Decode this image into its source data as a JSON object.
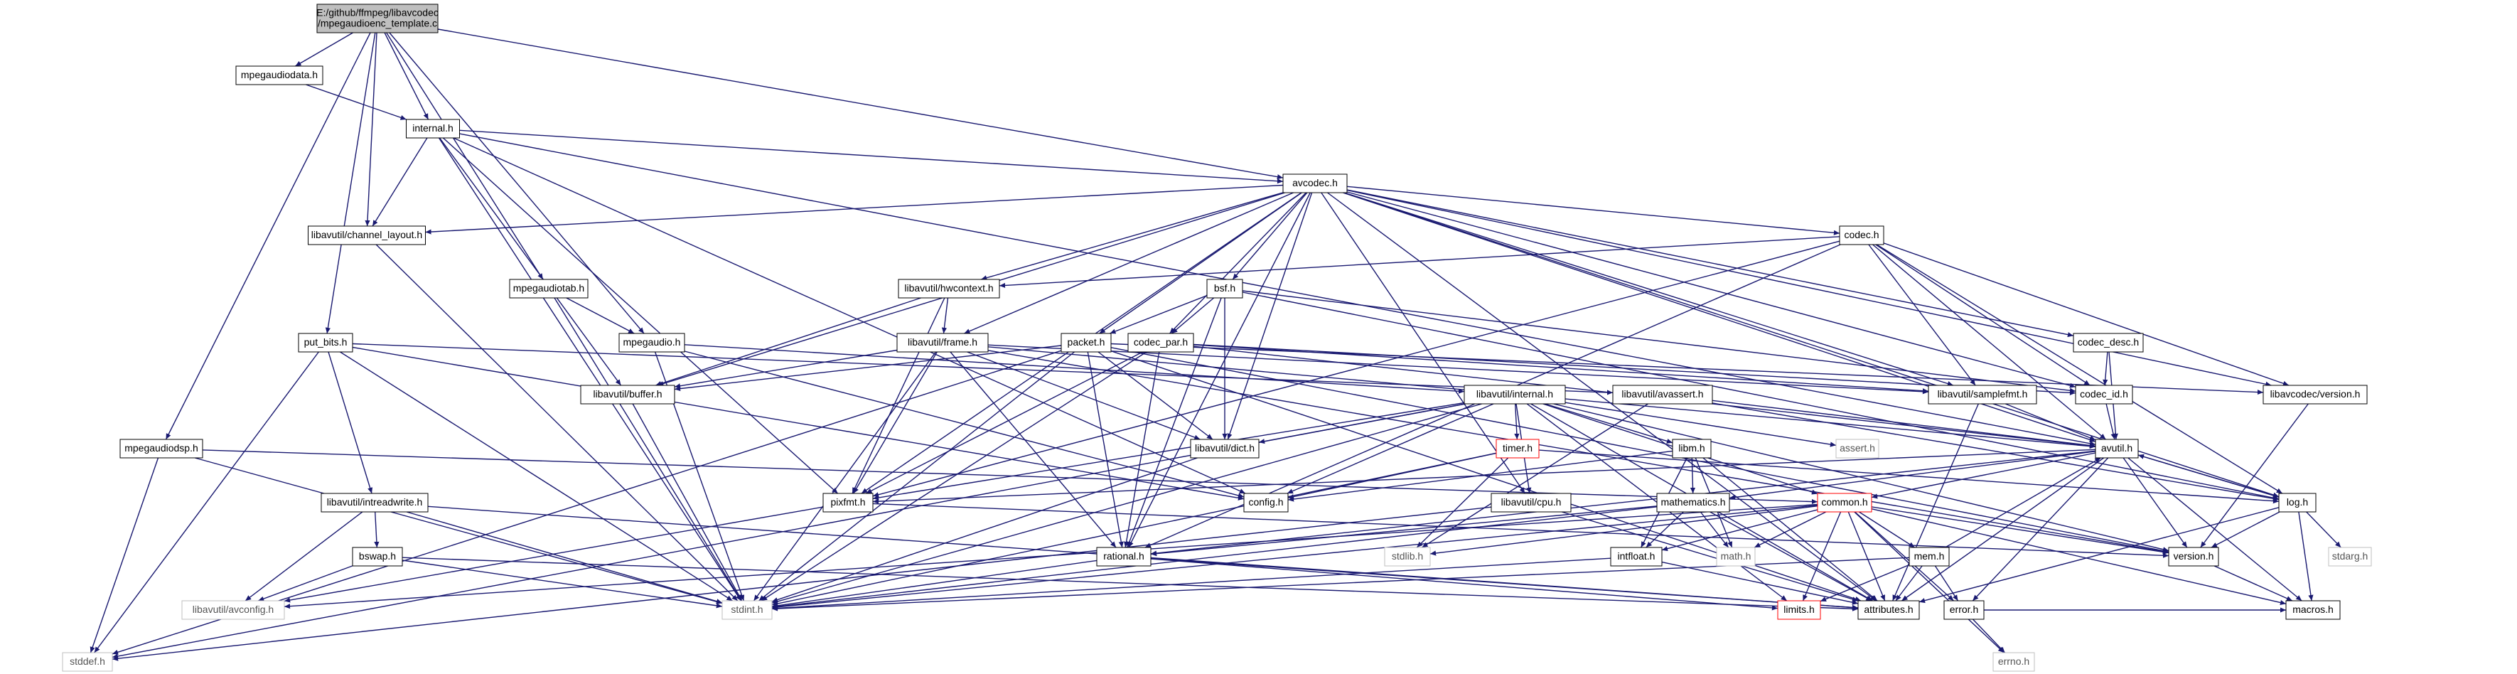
{
  "colors": {
    "edge": "#191970",
    "node_border": "#000000",
    "node_fill": "#ffffff",
    "root_fill": "#bfbfbf",
    "system_border": "#bfbfbf",
    "truncated_border": "#ff0000",
    "text": "#000000",
    "system_text": "#555555"
  },
  "graph": {
    "nodes": [
      {
        "id": "root",
        "label": "E:/github/ffmpeg/libavcodec\n/mpegaudioenc_template.c",
        "kind": "root"
      },
      {
        "id": "mpegaudiodata",
        "label": "mpegaudiodata.h"
      },
      {
        "id": "internal",
        "label": "internal.h"
      },
      {
        "id": "avcodec",
        "label": "avcodec.h"
      },
      {
        "id": "channel_layout",
        "label": "libavutil/channel_layout.h"
      },
      {
        "id": "codec",
        "label": "codec.h"
      },
      {
        "id": "hwcontext",
        "label": "libavutil/hwcontext.h"
      },
      {
        "id": "bsf",
        "label": "bsf.h"
      },
      {
        "id": "mpegaudiotab",
        "label": "mpegaudiotab.h"
      },
      {
        "id": "put_bits",
        "label": "put_bits.h"
      },
      {
        "id": "mpegaudio",
        "label": "mpegaudio.h"
      },
      {
        "id": "frame",
        "label": "libavutil/frame.h"
      },
      {
        "id": "packet",
        "label": "packet.h"
      },
      {
        "id": "codec_par",
        "label": "codec_par.h"
      },
      {
        "id": "codec_desc",
        "label": "codec_desc.h"
      },
      {
        "id": "buffer",
        "label": "libavutil/buffer.h"
      },
      {
        "id": "avutil_internal",
        "label": "libavutil/internal.h"
      },
      {
        "id": "avassert",
        "label": "libavutil/avassert.h"
      },
      {
        "id": "samplefmt",
        "label": "libavutil/samplefmt.h"
      },
      {
        "id": "codec_id",
        "label": "codec_id.h"
      },
      {
        "id": "avcodec_version",
        "label": "libavcodec/version.h"
      },
      {
        "id": "mpegaudiodsp",
        "label": "mpegaudiodsp.h"
      },
      {
        "id": "dict",
        "label": "libavutil/dict.h"
      },
      {
        "id": "timer",
        "label": "timer.h",
        "kind": "truncated"
      },
      {
        "id": "libm",
        "label": "libm.h"
      },
      {
        "id": "assert",
        "label": "assert.h",
        "kind": "system"
      },
      {
        "id": "avutil",
        "label": "avutil.h"
      },
      {
        "id": "intreadwrite",
        "label": "libavutil/intreadwrite.h"
      },
      {
        "id": "pixfmt",
        "label": "pixfmt.h"
      },
      {
        "id": "config",
        "label": "config.h"
      },
      {
        "id": "cpu",
        "label": "libavutil/cpu.h"
      },
      {
        "id": "mathematics",
        "label": "mathematics.h"
      },
      {
        "id": "common",
        "label": "common.h",
        "kind": "truncated"
      },
      {
        "id": "log",
        "label": "log.h"
      },
      {
        "id": "bswap",
        "label": "bswap.h"
      },
      {
        "id": "rational",
        "label": "rational.h"
      },
      {
        "id": "stdlib",
        "label": "stdlib.h",
        "kind": "system"
      },
      {
        "id": "intfloat",
        "label": "intfloat.h"
      },
      {
        "id": "math",
        "label": "math.h",
        "kind": "system"
      },
      {
        "id": "mem",
        "label": "mem.h"
      },
      {
        "id": "version",
        "label": "version.h"
      },
      {
        "id": "stdarg",
        "label": "stdarg.h",
        "kind": "system"
      },
      {
        "id": "avconfig",
        "label": "libavutil/avconfig.h",
        "kind": "system"
      },
      {
        "id": "stdint",
        "label": "stdint.h",
        "kind": "system"
      },
      {
        "id": "limits",
        "label": "limits.h",
        "kind": "truncated"
      },
      {
        "id": "attributes",
        "label": "attributes.h"
      },
      {
        "id": "error",
        "label": "error.h"
      },
      {
        "id": "macros",
        "label": "macros.h"
      },
      {
        "id": "stddef",
        "label": "stddef.h",
        "kind": "system"
      },
      {
        "id": "errno",
        "label": "errno.h",
        "kind": "system"
      }
    ],
    "edges": [
      [
        "root",
        "mpegaudiodata"
      ],
      [
        "root",
        "internal"
      ],
      [
        "root",
        "avcodec"
      ],
      [
        "root",
        "channel_layout"
      ],
      [
        "root",
        "mpegaudiotab"
      ],
      [
        "root",
        "put_bits"
      ],
      [
        "root",
        "mpegaudio"
      ],
      [
        "root",
        "mpegaudiodsp"
      ],
      [
        "mpegaudiodata",
        "internal"
      ],
      [
        "internal",
        "avcodec"
      ],
      [
        "internal",
        "channel_layout"
      ],
      [
        "internal",
        "buffer"
      ],
      [
        "internal",
        "pixfmt"
      ],
      [
        "internal",
        "stdint"
      ],
      [
        "internal",
        "config"
      ],
      [
        "internal",
        "avutil"
      ],
      [
        "avcodec",
        "channel_layout"
      ],
      [
        "avcodec",
        "codec"
      ],
      [
        "avcodec",
        "hwcontext"
      ],
      [
        "avcodec",
        "bsf"
      ],
      [
        "avcodec",
        "frame"
      ],
      [
        "avcodec",
        "packet"
      ],
      [
        "avcodec",
        "codec_par"
      ],
      [
        "avcodec",
        "codec_desc"
      ],
      [
        "avcodec",
        "buffer"
      ],
      [
        "avcodec",
        "samplefmt"
      ],
      [
        "avcodec",
        "codec_id"
      ],
      [
        "avcodec",
        "avcodec_version"
      ],
      [
        "avcodec",
        "dict"
      ],
      [
        "avcodec",
        "cpu"
      ],
      [
        "avcodec",
        "log"
      ],
      [
        "avcodec",
        "pixfmt"
      ],
      [
        "avcodec",
        "rational"
      ],
      [
        "avcodec",
        "avutil"
      ],
      [
        "avcodec",
        "attributes"
      ],
      [
        "channel_layout",
        "stdint"
      ],
      [
        "codec",
        "hwcontext"
      ],
      [
        "codec",
        "samplefmt"
      ],
      [
        "codec",
        "codec_id"
      ],
      [
        "codec",
        "avcodec_version"
      ],
      [
        "codec",
        "avutil"
      ],
      [
        "codec",
        "log"
      ],
      [
        "codec",
        "pixfmt"
      ],
      [
        "codec",
        "rational"
      ],
      [
        "hwcontext",
        "buffer"
      ],
      [
        "hwcontext",
        "frame"
      ],
      [
        "hwcontext",
        "pixfmt"
      ],
      [
        "bsf",
        "packet"
      ],
      [
        "bsf",
        "codec_par"
      ],
      [
        "bsf",
        "codec_id"
      ],
      [
        "bsf",
        "dict"
      ],
      [
        "bsf",
        "log"
      ],
      [
        "bsf",
        "rational"
      ],
      [
        "mpegaudiotab",
        "mpegaudio"
      ],
      [
        "mpegaudiotab",
        "stdint"
      ],
      [
        "put_bits",
        "intreadwrite"
      ],
      [
        "put_bits",
        "stdint"
      ],
      [
        "put_bits",
        "stddef"
      ],
      [
        "put_bits",
        "config"
      ],
      [
        "put_bits",
        "avassert"
      ],
      [
        "mpegaudio",
        "config"
      ],
      [
        "mpegaudio",
        "stdint"
      ],
      [
        "mpegaudio",
        "avutil_internal"
      ],
      [
        "frame",
        "buffer"
      ],
      [
        "frame",
        "dict"
      ],
      [
        "frame",
        "pixfmt"
      ],
      [
        "frame",
        "rational"
      ],
      [
        "frame",
        "samplefmt"
      ],
      [
        "frame",
        "avutil"
      ],
      [
        "frame",
        "stdint"
      ],
      [
        "frame",
        "version"
      ],
      [
        "packet",
        "buffer"
      ],
      [
        "packet",
        "dict"
      ],
      [
        "packet",
        "rational"
      ],
      [
        "packet",
        "stddef"
      ],
      [
        "packet",
        "stdint"
      ],
      [
        "packet",
        "attributes"
      ],
      [
        "packet",
        "version"
      ],
      [
        "packet",
        "avcodec_version"
      ],
      [
        "codec_par",
        "codec_id"
      ],
      [
        "codec_par",
        "pixfmt"
      ],
      [
        "codec_par",
        "rational"
      ],
      [
        "codec_par",
        "avutil"
      ],
      [
        "codec_par",
        "samplefmt"
      ],
      [
        "codec_par",
        "stdint"
      ],
      [
        "codec_desc",
        "codec_id"
      ],
      [
        "codec_desc",
        "avutil"
      ],
      [
        "buffer",
        "stdint"
      ],
      [
        "avutil_internal",
        "timer"
      ],
      [
        "avutil_internal",
        "libm"
      ],
      [
        "avutil_internal",
        "assert"
      ],
      [
        "avutil_internal",
        "config"
      ],
      [
        "avutil_internal",
        "common"
      ],
      [
        "avutil_internal",
        "cpu"
      ],
      [
        "avutil_internal",
        "dict"
      ],
      [
        "avutil_internal",
        "pixfmt"
      ],
      [
        "avutil_internal",
        "version"
      ],
      [
        "avutil_internal",
        "attributes"
      ],
      [
        "avutil_internal",
        "limits"
      ],
      [
        "avutil_internal",
        "stdint"
      ],
      [
        "avutil_internal",
        "stddef"
      ],
      [
        "avassert",
        "log"
      ],
      [
        "avassert",
        "avutil"
      ],
      [
        "avassert",
        "stdlib"
      ],
      [
        "samplefmt",
        "avutil"
      ],
      [
        "samplefmt",
        "attributes"
      ],
      [
        "codec_id",
        "avutil"
      ],
      [
        "avcodec_version",
        "version"
      ],
      [
        "mpegaudiodsp",
        "stdint"
      ],
      [
        "mpegaudiodsp",
        "stddef"
      ],
      [
        "mpegaudiodsp",
        "common"
      ],
      [
        "dict",
        "stdint"
      ],
      [
        "timer",
        "config"
      ],
      [
        "timer",
        "log"
      ],
      [
        "timer",
        "stdlib"
      ],
      [
        "timer",
        "stdint"
      ],
      [
        "libm",
        "config"
      ],
      [
        "libm",
        "mathematics"
      ],
      [
        "libm",
        "attributes"
      ],
      [
        "libm",
        "intfloat"
      ],
      [
        "libm",
        "math"
      ],
      [
        "avutil",
        "common"
      ],
      [
        "avutil",
        "error"
      ],
      [
        "avutil",
        "version"
      ],
      [
        "avutil",
        "macros"
      ],
      [
        "avutil",
        "mathematics"
      ],
      [
        "avutil",
        "rational"
      ],
      [
        "avutil",
        "log"
      ],
      [
        "avutil",
        "pixfmt"
      ],
      [
        "avutil",
        "attributes"
      ],
      [
        "intreadwrite",
        "bswap"
      ],
      [
        "intreadwrite",
        "stdint"
      ],
      [
        "intreadwrite",
        "avconfig"
      ],
      [
        "intreadwrite",
        "attributes"
      ],
      [
        "pixfmt",
        "version"
      ],
      [
        "pixfmt",
        "avconfig"
      ],
      [
        "cpu",
        "attributes"
      ],
      [
        "cpu",
        "stddef"
      ],
      [
        "mathematics",
        "math"
      ],
      [
        "mathematics",
        "stdint"
      ],
      [
        "mathematics",
        "attributes"
      ],
      [
        "mathematics",
        "rational"
      ],
      [
        "mathematics",
        "intfloat"
      ],
      [
        "common",
        "attributes"
      ],
      [
        "common",
        "macros"
      ],
      [
        "common",
        "version"
      ],
      [
        "common",
        "mem"
      ],
      [
        "common",
        "error"
      ],
      [
        "common",
        "math"
      ],
      [
        "common",
        "limits"
      ],
      [
        "common",
        "stdint"
      ],
      [
        "common",
        "stdlib"
      ],
      [
        "common",
        "intfloat"
      ],
      [
        "common",
        "errno"
      ],
      [
        "common",
        "avconfig"
      ],
      [
        "log",
        "avutil"
      ],
      [
        "log",
        "attributes"
      ],
      [
        "log",
        "version"
      ],
      [
        "log",
        "macros"
      ],
      [
        "log",
        "stdarg"
      ],
      [
        "bswap",
        "stdint"
      ],
      [
        "bswap",
        "avconfig"
      ],
      [
        "bswap",
        "attributes"
      ],
      [
        "rational",
        "stdint"
      ],
      [
        "rational",
        "limits"
      ],
      [
        "rational",
        "attributes"
      ],
      [
        "intfloat",
        "stdint"
      ],
      [
        "intfloat",
        "attributes"
      ],
      [
        "mem",
        "error"
      ],
      [
        "mem",
        "limits"
      ],
      [
        "mem",
        "stdint"
      ],
      [
        "mem",
        "attributes"
      ],
      [
        "mem",
        "avutil"
      ],
      [
        "error",
        "errno"
      ],
      [
        "error",
        "macros"
      ],
      [
        "version",
        "macros"
      ]
    ]
  }
}
